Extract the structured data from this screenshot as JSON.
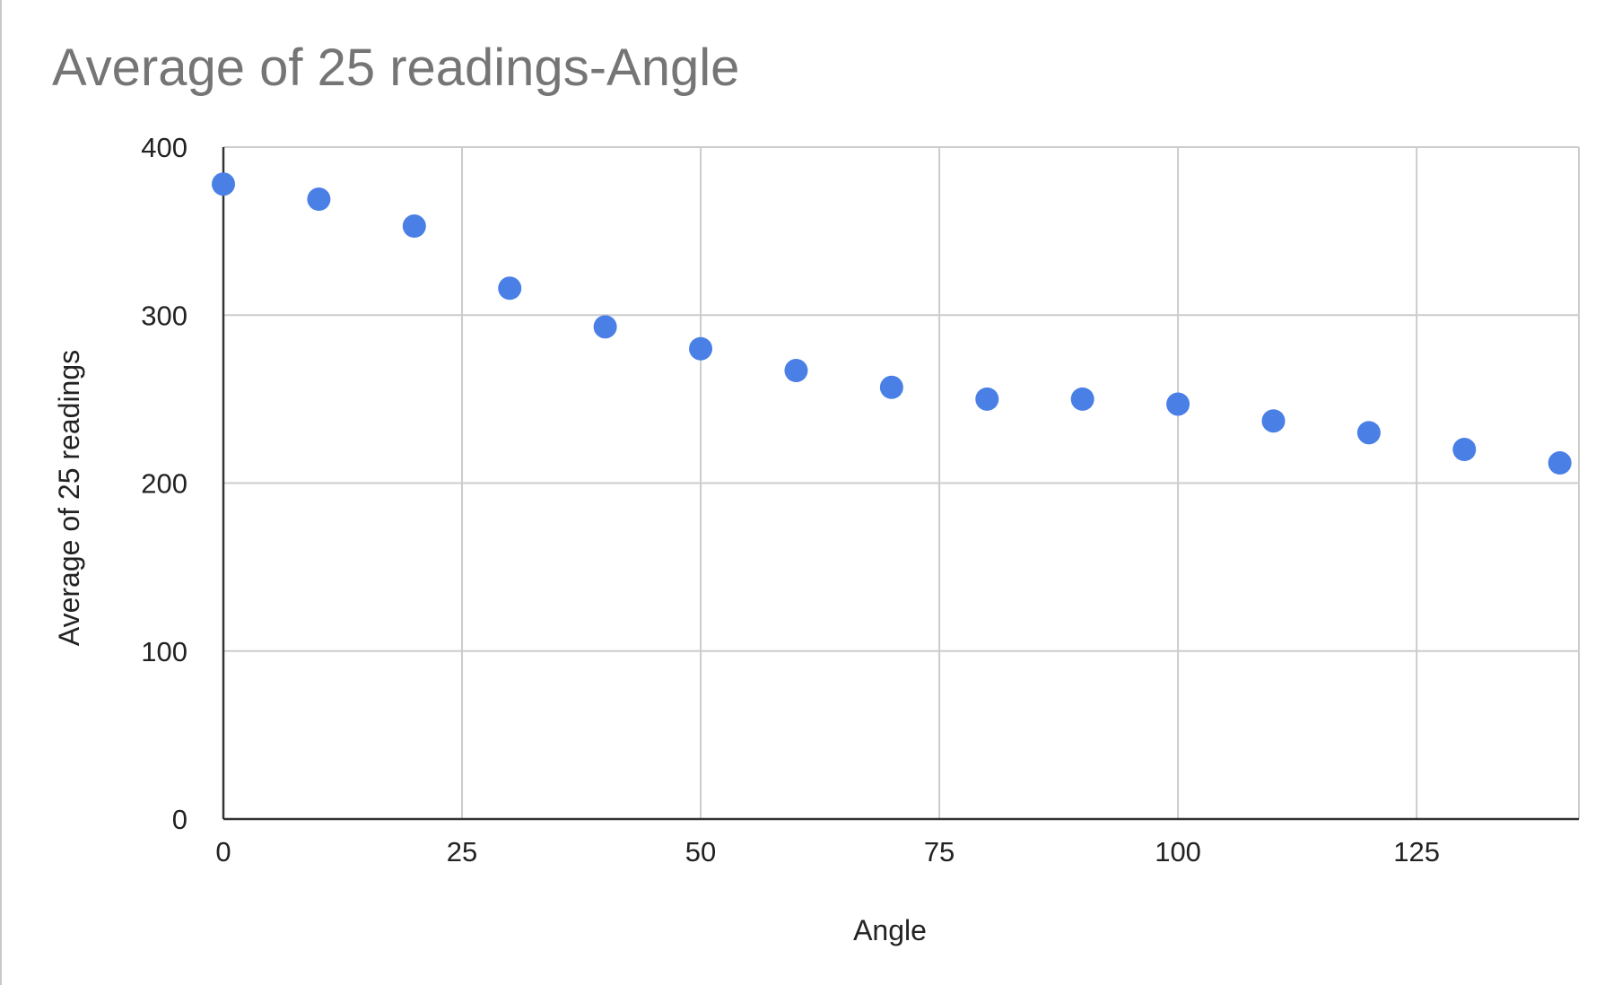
{
  "chart_data": {
    "type": "scatter",
    "title": "Average of 25 readings-Angle",
    "xlabel": "Angle",
    "ylabel": "Average of 25 readings",
    "xlim": [
      0,
      142
    ],
    "ylim": [
      0,
      400
    ],
    "xticks": [
      "0",
      "25",
      "50",
      "75",
      "100",
      "125"
    ],
    "yticks": [
      "0",
      "100",
      "200",
      "300",
      "400"
    ],
    "grid": true,
    "legend": "none",
    "marker_color": "#4a7fe6",
    "series": [
      {
        "x": [
          0,
          10,
          20,
          30,
          40,
          50,
          60,
          70,
          80,
          90,
          100,
          110,
          120,
          130,
          140
        ],
        "y": [
          378,
          369,
          353,
          316,
          293,
          280,
          267,
          257,
          250,
          250,
          247,
          237,
          230,
          220,
          212
        ]
      }
    ]
  }
}
